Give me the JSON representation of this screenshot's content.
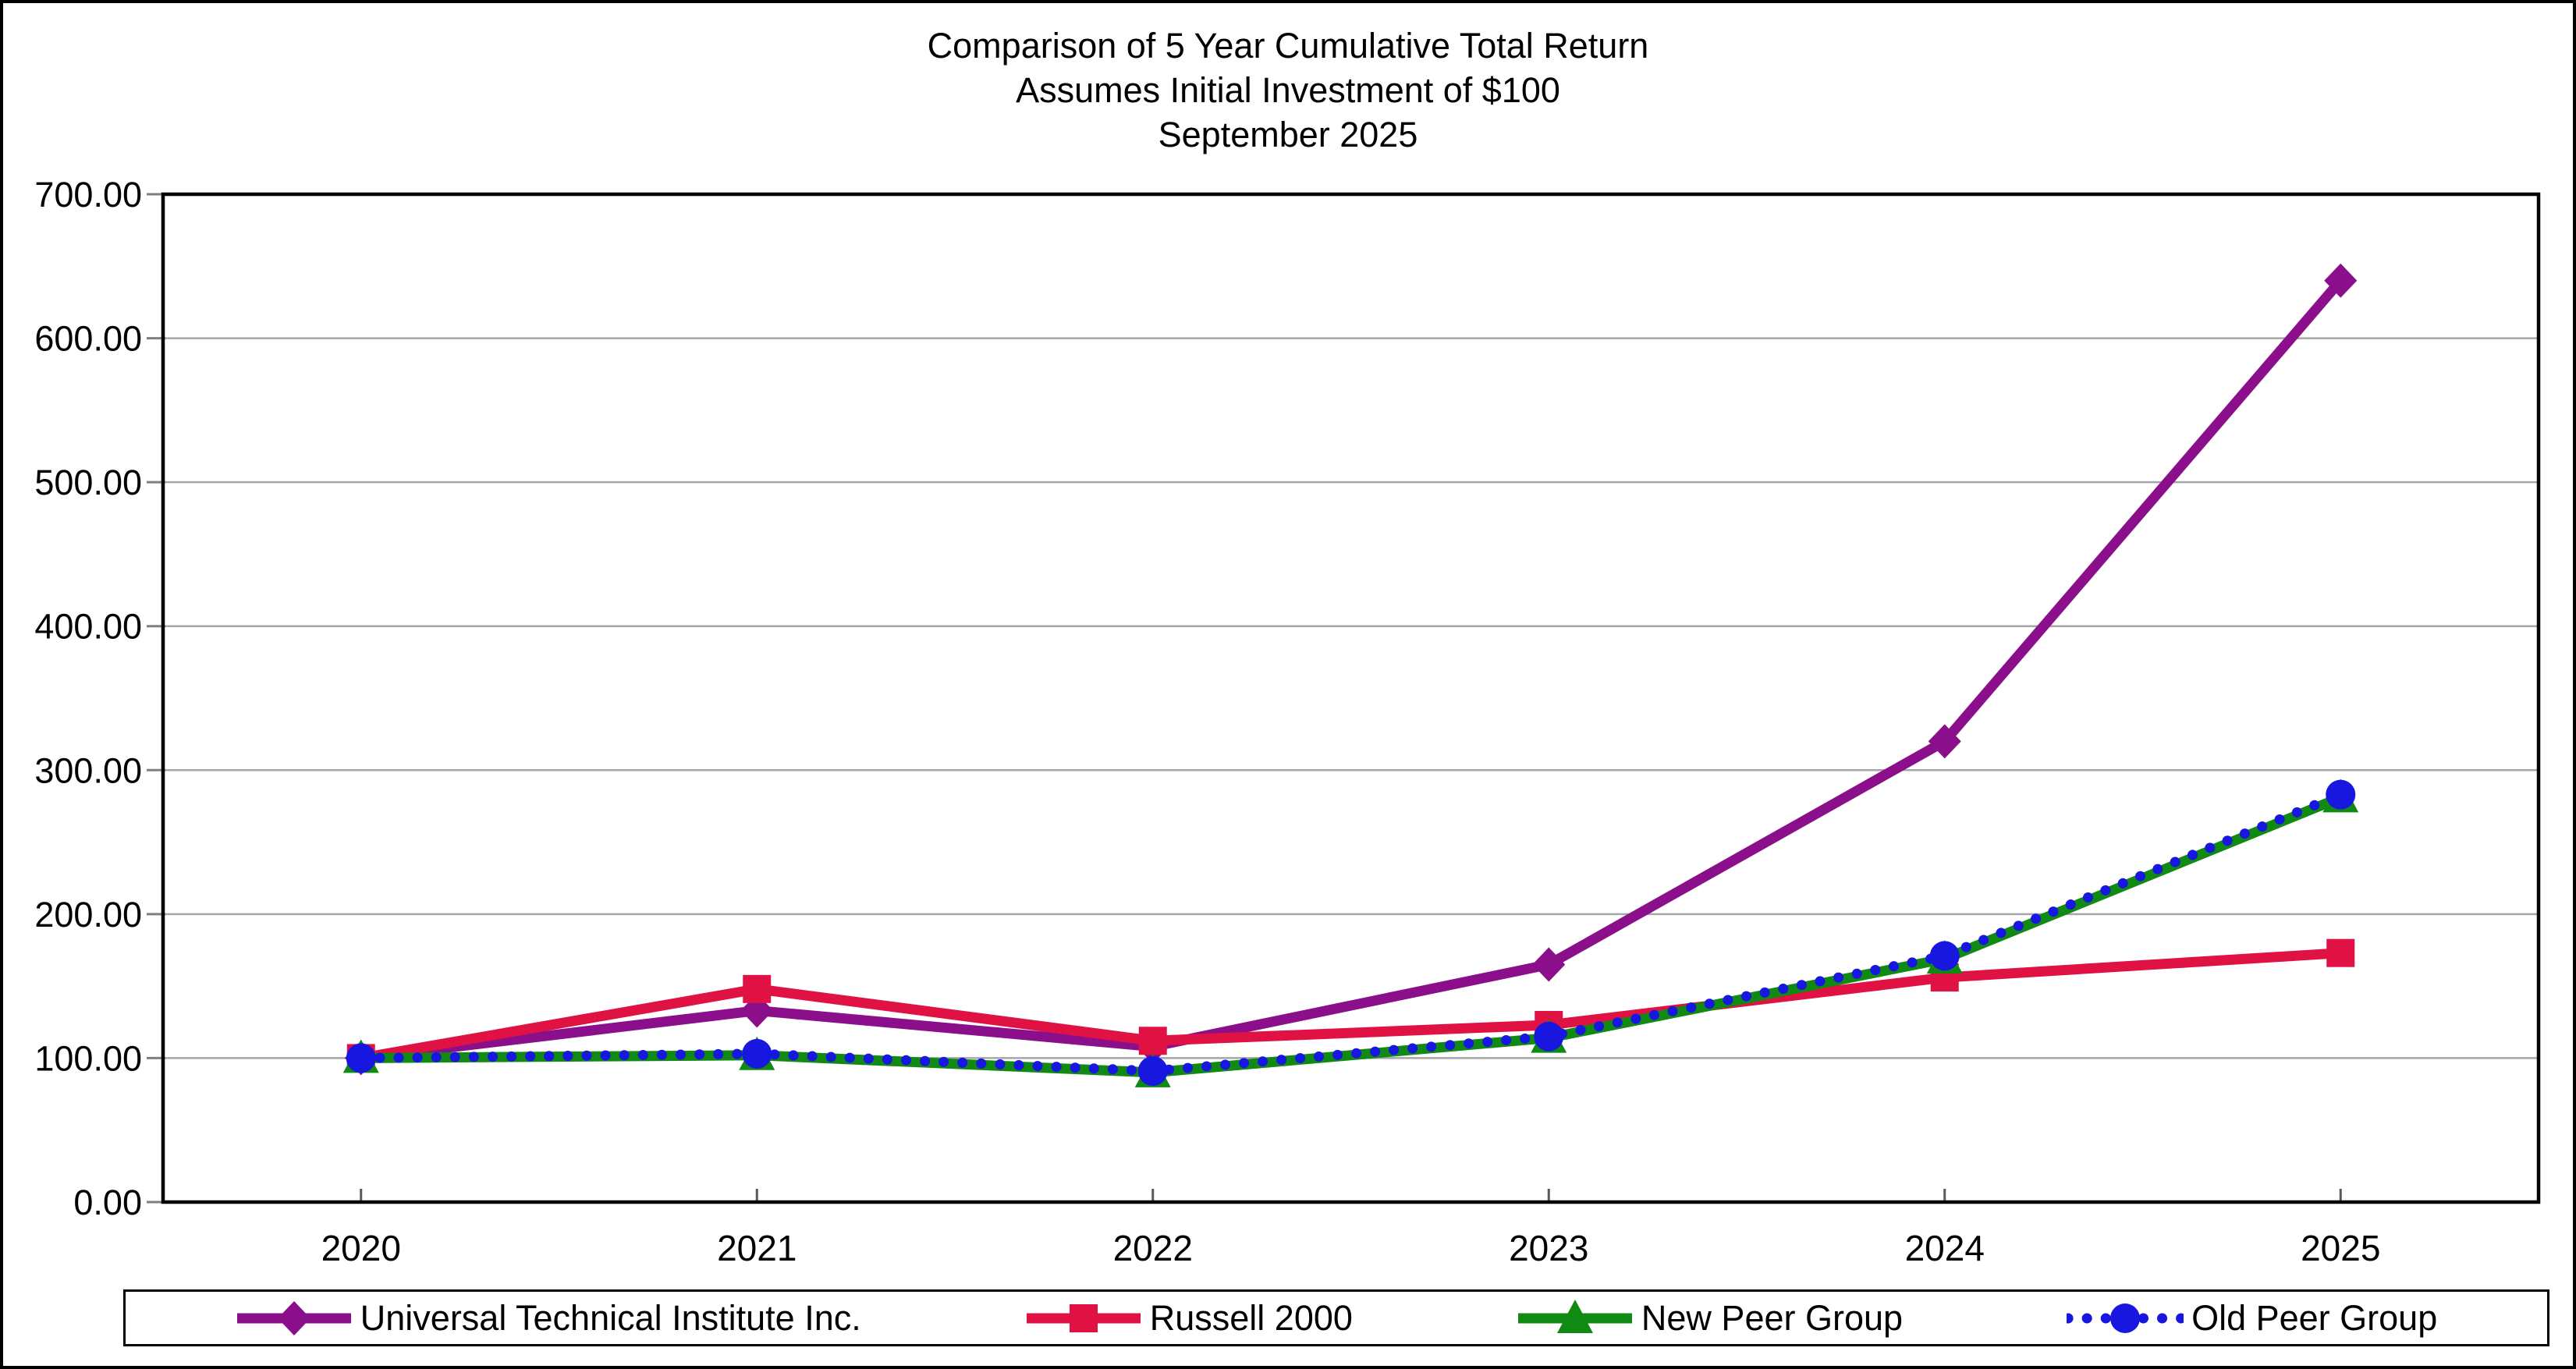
{
  "title": {
    "line1": "Comparison of 5 Year Cumulative Total Return",
    "line2": "Assumes Initial Investment of $100",
    "line3": "September 2025"
  },
  "chart_data": {
    "type": "line",
    "title": "Comparison of 5 Year Cumulative Total Return",
    "subtitle": "Assumes Initial Investment of $100",
    "period_label": "September 2025",
    "categories": [
      "2020",
      "2021",
      "2022",
      "2023",
      "2024",
      "2025"
    ],
    "series": [
      {
        "name": "Universal Technical Institute Inc.",
        "color": "#8B0F8B",
        "marker": "diamond",
        "line_style": "solid",
        "values": [
          100,
          133,
          108,
          165,
          320,
          640
        ]
      },
      {
        "name": "Russell 2000",
        "color": "#DF1243",
        "marker": "square",
        "line_style": "solid",
        "values": [
          100,
          148,
          112,
          123,
          156,
          173
        ]
      },
      {
        "name": "New Peer Group",
        "color": "#108A12",
        "marker": "triangle",
        "line_style": "solid",
        "values": [
          100,
          102,
          90,
          114,
          169,
          281
        ]
      },
      {
        "name": "Old Peer Group",
        "color": "#1717E0",
        "marker": "circle",
        "line_style": "dotted",
        "values": [
          100,
          103,
          91,
          115,
          171,
          283
        ]
      }
    ],
    "xlabel": "",
    "ylabel": "",
    "ylim": [
      0,
      700
    ],
    "ytick_step": 100,
    "ytick_labels": [
      "0.00",
      "100.00",
      "200.00",
      "300.00",
      "400.00",
      "500.00",
      "600.00",
      "700.00"
    ],
    "grid": true,
    "legend_position": "bottom",
    "axis_colors": {
      "gridline": "#A6A6A6",
      "y_tick": "#7F7F7F",
      "x_tick": "#595959",
      "plot_border": "#000000"
    }
  }
}
